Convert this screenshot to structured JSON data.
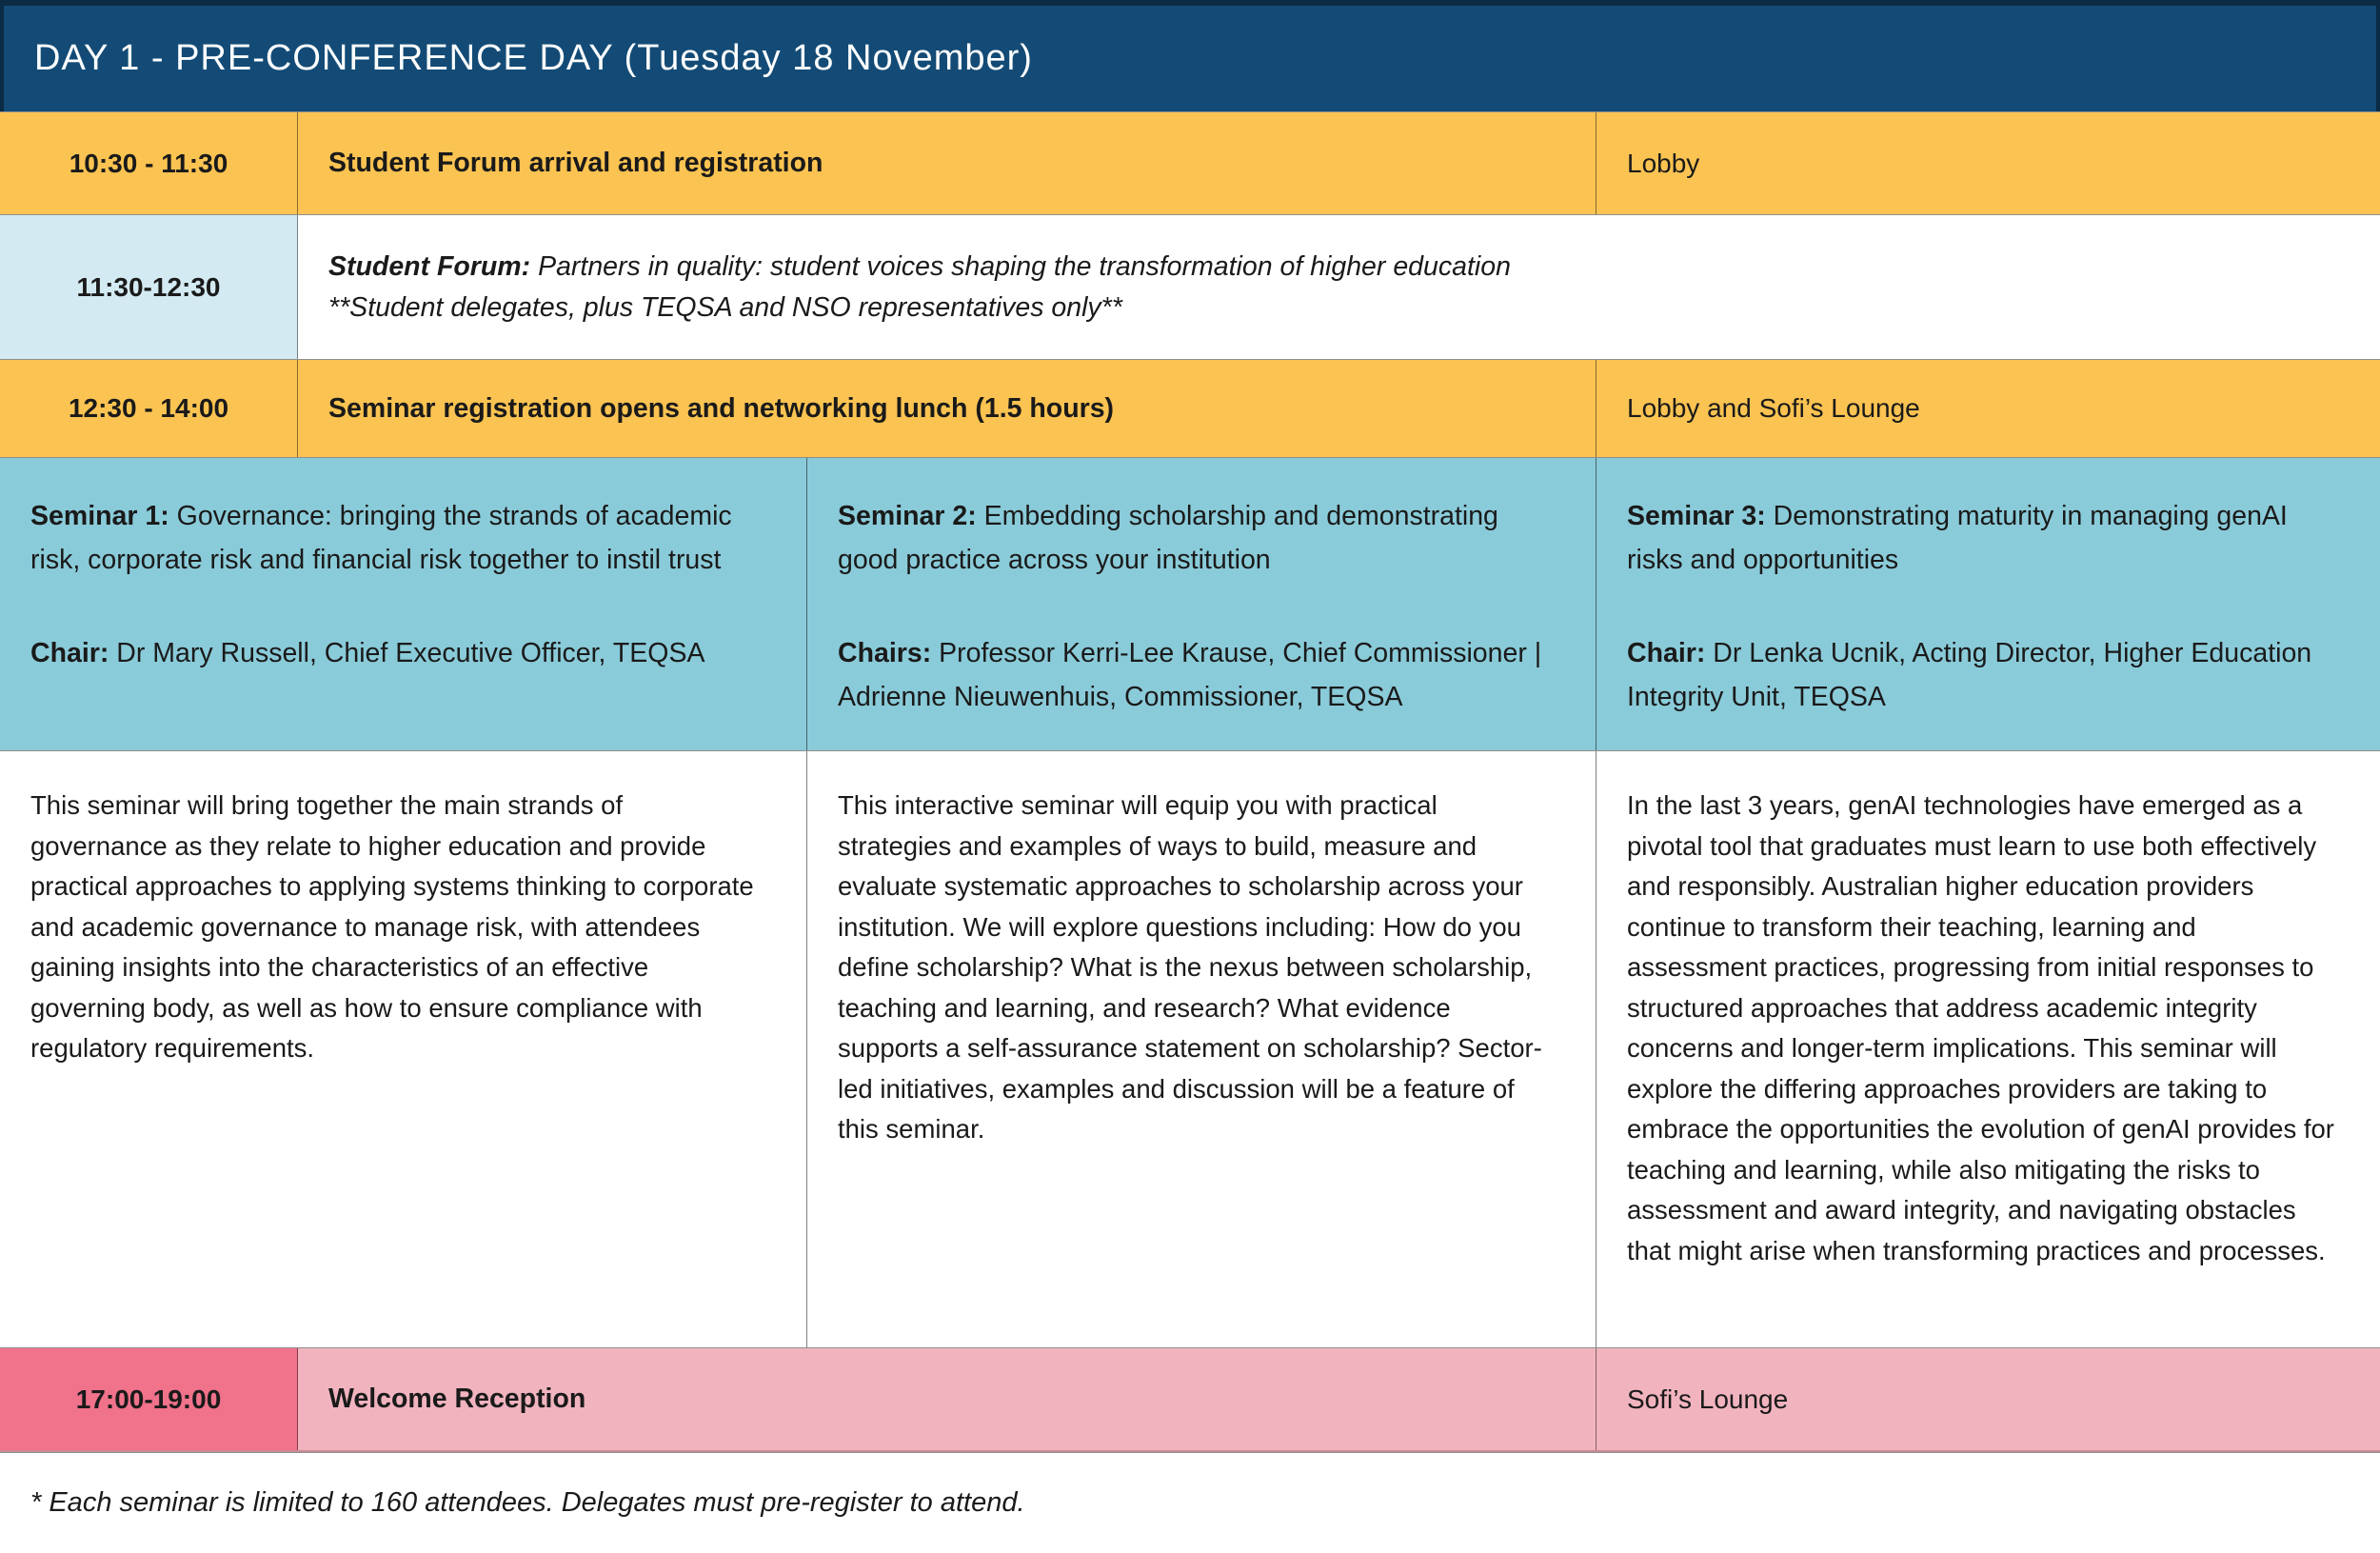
{
  "header": {
    "title": "DAY 1 - PRE-CONFERENCE DAY (Tuesday 18 November)"
  },
  "colors": {
    "header_bg": "#134B76",
    "header_border": "#0B2B44",
    "header_text": "#FFFFFF",
    "yellow": "#FBC351",
    "light_blue": "#D3EAF2",
    "teal": "#8ACBD9",
    "pink_dark": "#F0728B",
    "pink_light": "#F1B4BF",
    "text": "#1A1A1A",
    "grid_line": "#8F8F8F"
  },
  "rows": {
    "registration": {
      "time": "10:30 - 11:30",
      "title": "Student Forum arrival and registration",
      "location": "Lobby"
    },
    "student_forum": {
      "time": "11:30-12:30",
      "label": "Student Forum:",
      "description": "Partners in quality: student voices shaping the transformation of higher education",
      "note": "**Student delegates, plus TEQSA and NSO representatives only**"
    },
    "seminar_registration": {
      "time": "12:30 - 14:00",
      "title": "Seminar registration opens and networking lunch (1.5 hours)",
      "location": "Lobby and Sofi’s Lounge"
    },
    "reception": {
      "time": "17:00-19:00",
      "title": "Welcome Reception",
      "location": "Sofi’s Lounge"
    }
  },
  "seminars": [
    {
      "label": "Seminar 1:",
      "title": "Governance: bringing the strands of academic risk, corporate risk and financial risk together to instil trust",
      "chair_label": "Chair:",
      "chairs": "Dr Mary Russell, Chief Executive Officer, TEQSA",
      "description": "This seminar will bring together the main strands of governance as they relate to higher education and provide practical approaches to applying systems thinking to corporate and academic governance to manage risk, with attendees gaining insights into the characteristics of an effective governing body, as well as how to ensure compliance with regulatory requirements."
    },
    {
      "label": "Seminar 2:",
      "title": "Embedding scholarship and demonstrating good practice across your institution",
      "chair_label": "Chairs:",
      "chairs": "Professor Kerri-Lee Krause, Chief Commissioner | Adrienne Nieuwenhuis, Commissioner, TEQSA",
      "description": "This interactive seminar will equip you with practical strategies and examples of ways to build, measure and evaluate systematic approaches to scholarship across your institution. We will explore questions including: How do you define scholarship? What is the nexus between scholarship, teaching and learning, and research? What evidence supports a self-assurance statement on scholarship? Sector-led initiatives, examples and discussion will be a feature of this seminar."
    },
    {
      "label": "Seminar 3:",
      "title": "Demonstrating maturity in managing genAI risks and opportunities",
      "chair_label": "Chair:",
      "chairs": "Dr Lenka Ucnik, Acting Director, Higher Education Integrity Unit, TEQSA",
      "description": "In the last 3 years, genAI technologies have emerged as a pivotal tool that graduates must learn to use both effectively and responsibly. Australian higher education providers continue to transform their teaching, learning and assessment practices, progressing from initial responses to structured approaches that address academic integrity concerns and longer-term implications. This seminar will explore the differing approaches providers are taking to embrace the opportunities the evolution of genAI provides for teaching and learning, while also mitigating the risks to assessment and award integrity, and navigating obstacles that might arise when transforming practices and processes."
    }
  ],
  "footnote": "* Each seminar is limited to 160 attendees. Delegates must pre-register to attend."
}
